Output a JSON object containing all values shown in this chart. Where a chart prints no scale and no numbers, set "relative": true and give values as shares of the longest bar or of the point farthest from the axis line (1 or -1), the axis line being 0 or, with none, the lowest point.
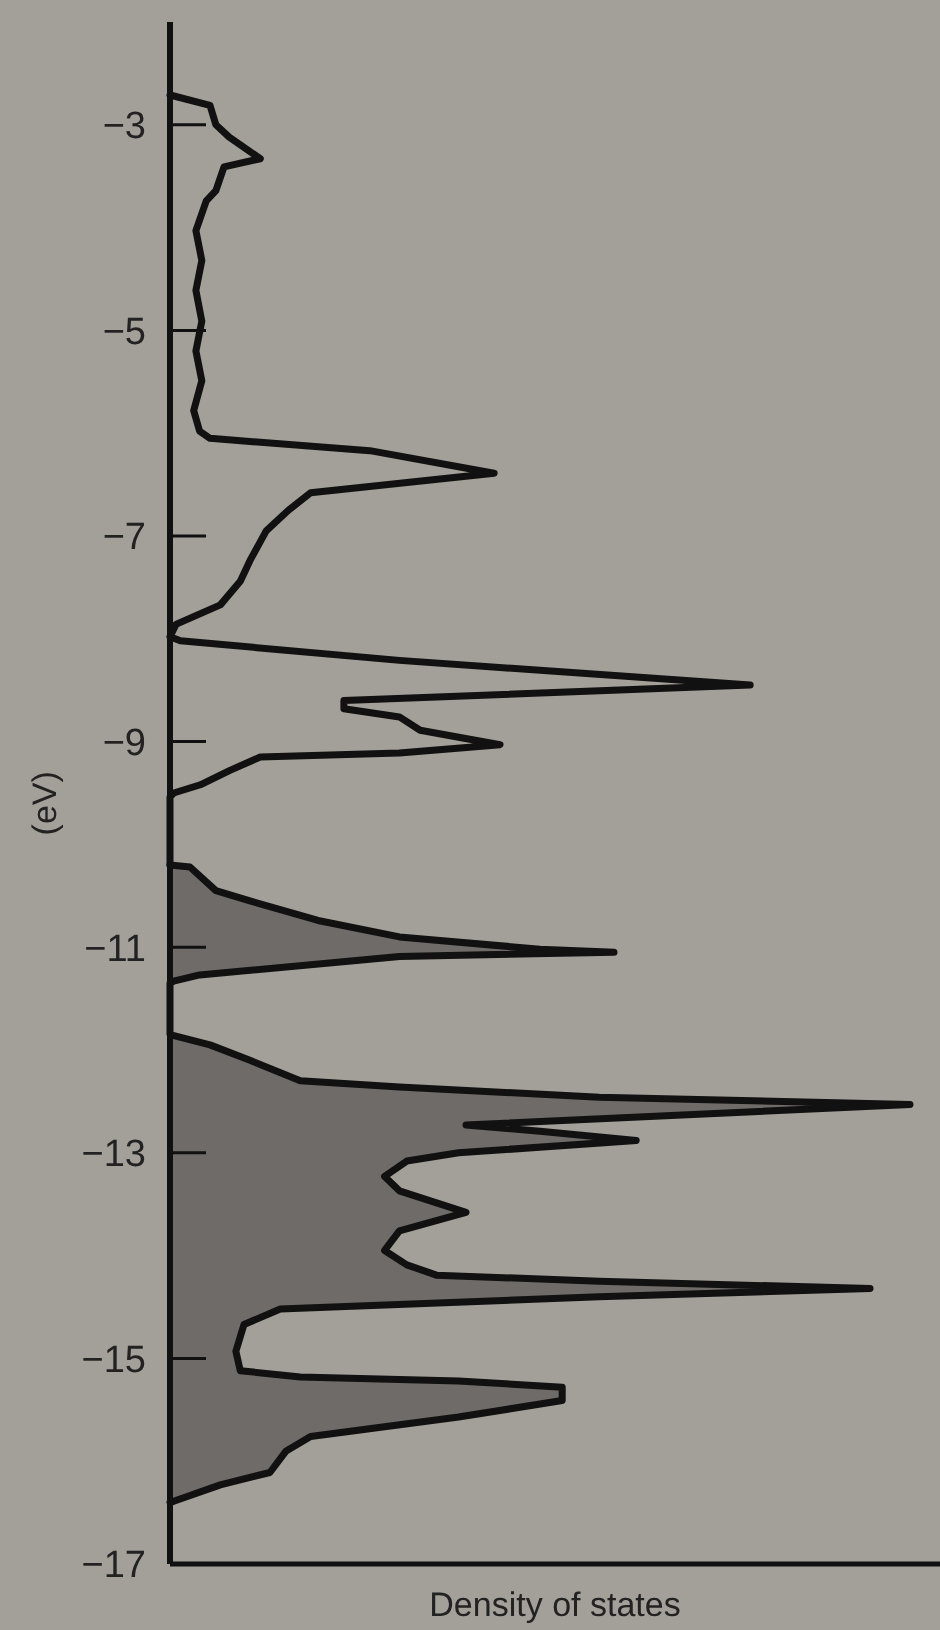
{
  "chart_data": {
    "type": "line",
    "orientation": "horizontal",
    "relative": true,
    "xlabel": "Density of states",
    "ylabel": "(eV)",
    "ylim": [
      -17,
      -2
    ],
    "yticks": [
      {
        "value": -3,
        "label": "−3"
      },
      {
        "value": -5,
        "label": "−5"
      },
      {
        "value": -7,
        "label": "−7"
      },
      {
        "value": -9,
        "label": "−9"
      },
      {
        "value": -11,
        "label": "−11"
      },
      {
        "value": -13,
        "label": "−13"
      },
      {
        "value": -15,
        "label": "−15"
      },
      {
        "value": -17,
        "label": "−17"
      }
    ],
    "grid": false,
    "series": [
      {
        "color": "#111111",
        "x": [
          -2.71,
          -2.81,
          -3.0,
          -3.12,
          -3.33,
          -3.41,
          -3.64,
          -3.74,
          -4.03,
          -4.32,
          -4.61,
          -4.91,
          -5.2,
          -5.49,
          -5.78,
          -5.98,
          -6.05,
          -6.17,
          -6.39,
          -6.58,
          -6.75,
          -6.95,
          -7.24,
          -7.44,
          -7.67,
          -7.86,
          -7.98,
          -8.02,
          -8.21,
          -8.45,
          -8.6,
          -8.68,
          -8.76,
          -8.89,
          -9.03,
          -9.11,
          -9.15,
          -9.28,
          -9.42,
          -9.5,
          -9.54,
          -10.2
        ],
        "values": [
          0,
          0.054,
          0.062,
          0.08,
          0.122,
          0.073,
          0.062,
          0.049,
          0.035,
          0.043,
          0.035,
          0.043,
          0.035,
          0.043,
          0.032,
          0.04,
          0.054,
          0.27,
          0.438,
          0.19,
          0.16,
          0.13,
          0.108,
          0.095,
          0.068,
          0.008,
          0,
          0.014,
          0.31,
          0.784,
          0.235,
          0.235,
          0.31,
          0.338,
          0.446,
          0.31,
          0.122,
          0.081,
          0.041,
          0.005,
          0,
          0
        ]
      },
      {
        "type": "area",
        "color": "#6e6b68",
        "x": [
          -10.2,
          -10.22,
          -10.45,
          -10.55,
          -10.74,
          -10.9,
          -11.02,
          -11.05,
          -11.09,
          -11.27,
          -11.33,
          -11.35,
          -11.85,
          -11.95,
          -12.1,
          -12.3,
          -12.36,
          -12.46,
          -12.53,
          -12.73,
          -12.79,
          -12.88,
          -13.0,
          -13.08,
          -13.23,
          -13.37,
          -13.58,
          -13.76,
          -13.95,
          -14.09,
          -14.19,
          -14.25,
          -14.32,
          -14.4,
          -14.52,
          -14.67,
          -14.93,
          -15.12,
          -15.18,
          -15.22,
          -15.28,
          -15.41,
          -15.57,
          -15.76,
          -15.9,
          -16.11,
          -16.23,
          -16.39,
          -16.4
        ],
        "values": [
          0,
          0.027,
          0.062,
          0.108,
          0.2,
          0.31,
          0.5,
          0.6,
          0.31,
          0.04,
          0.005,
          0,
          0,
          0.054,
          0.108,
          0.176,
          0.31,
          0.58,
          1,
          0.4,
          0.5,
          0.63,
          0.39,
          0.32,
          0.29,
          0.31,
          0.4,
          0.31,
          0.29,
          0.32,
          0.36,
          0.58,
          0.946,
          0.58,
          0.149,
          0.1,
          0.089,
          0.095,
          0.176,
          0.39,
          0.53,
          0.53,
          0.39,
          0.19,
          0.157,
          0.135,
          0.068,
          0.005,
          0
        ]
      }
    ]
  }
}
